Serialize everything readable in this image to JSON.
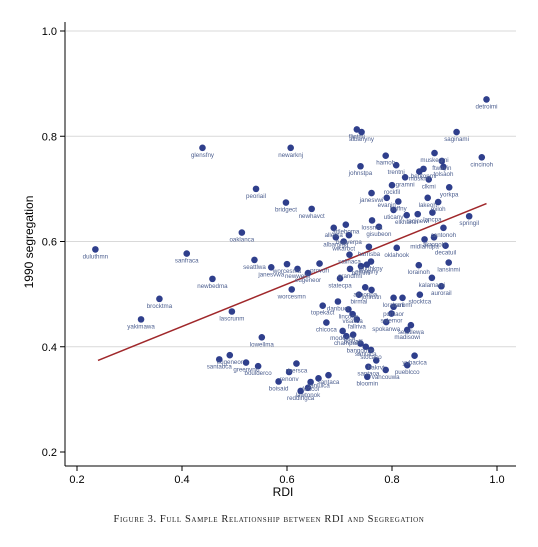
{
  "chart_data": {
    "type": "scatter",
    "xlabel": "RDI",
    "ylabel": "1990 segregation",
    "xlim": [
      0.2,
      1.0
    ],
    "ylim": [
      0.2,
      1.0
    ],
    "xticks": [
      "0.2",
      "0.4",
      "0.6",
      "0.8",
      "1.0"
    ],
    "yticks": [
      "0.2",
      "0.4",
      "0.6",
      "0.8",
      "1.0"
    ],
    "grid": "horizontal",
    "colors": {
      "point": "#2f3f8c",
      "fit_line": "#a0282b",
      "label": "#4d5f8f",
      "grid": "#d9d9d9"
    },
    "fit_line": {
      "x": [
        0.24,
        0.98
      ],
      "y": [
        0.374,
        0.672
      ]
    },
    "points": [
      {
        "x": 0.98,
        "y": 0.87,
        "label": "detroimi"
      },
      {
        "x": 0.923,
        "y": 0.808,
        "label": "saginami"
      },
      {
        "x": 0.971,
        "y": 0.76,
        "label": "cincinoh"
      },
      {
        "x": 0.881,
        "y": 0.768,
        "label": "muskegmi"
      },
      {
        "x": 0.898,
        "y": 0.742,
        "label": "tolsaoh"
      },
      {
        "x": 0.86,
        "y": 0.738,
        "label": "bentonmi"
      },
      {
        "x": 0.87,
        "y": 0.718,
        "label": "clkmi"
      },
      {
        "x": 0.852,
        "y": 0.733,
        "label": "muskmi"
      },
      {
        "x": 0.895,
        "y": 0.753,
        "label": "ftwayin"
      },
      {
        "x": 0.909,
        "y": 0.703,
        "label": "yorkpa"
      },
      {
        "x": 0.888,
        "y": 0.675,
        "label": "miloh"
      },
      {
        "x": 0.868,
        "y": 0.683,
        "label": "lakeoh"
      },
      {
        "x": 0.877,
        "y": 0.655,
        "label": "lancpa"
      },
      {
        "x": 0.947,
        "y": 0.648,
        "label": "springil"
      },
      {
        "x": 0.898,
        "y": 0.626,
        "label": "cantonoh"
      },
      {
        "x": 0.88,
        "y": 0.608,
        "label": "akronoh"
      },
      {
        "x": 0.902,
        "y": 0.592,
        "label": "decatuil"
      },
      {
        "x": 0.862,
        "y": 0.604,
        "label": "midlandpa"
      },
      {
        "x": 0.908,
        "y": 0.56,
        "label": "lansinmi"
      },
      {
        "x": 0.851,
        "y": 0.555,
        "label": "lorainoh"
      },
      {
        "x": 0.876,
        "y": 0.531,
        "label": "kalamami"
      },
      {
        "x": 0.894,
        "y": 0.515,
        "label": "aurorail"
      },
      {
        "x": 0.853,
        "y": 0.499,
        "label": "stocktca"
      },
      {
        "x": 0.82,
        "y": 0.493,
        "label": "harbmi"
      },
      {
        "x": 0.803,
        "y": 0.493,
        "label": "lorainmi"
      },
      {
        "x": 0.803,
        "y": 0.476,
        "label": "portlaor"
      },
      {
        "x": 0.799,
        "y": 0.463,
        "label": "salemor"
      },
      {
        "x": 0.789,
        "y": 0.447,
        "label": "spokanwa"
      },
      {
        "x": 0.836,
        "y": 0.441,
        "label": "seattlewa"
      },
      {
        "x": 0.829,
        "y": 0.432,
        "label": "madisowi"
      },
      {
        "x": 0.843,
        "y": 0.383,
        "label": "yubacica"
      },
      {
        "x": 0.829,
        "y": 0.365,
        "label": "pueblcco"
      },
      {
        "x": 0.77,
        "y": 0.374,
        "label": "bakrvt"
      },
      {
        "x": 0.755,
        "y": 0.362,
        "label": "santaoa"
      },
      {
        "x": 0.788,
        "y": 0.356,
        "label": "vancouwa"
      },
      {
        "x": 0.753,
        "y": 0.343,
        "label": "bloomin"
      },
      {
        "x": 0.733,
        "y": 0.813,
        "label": "flintmi"
      },
      {
        "x": 0.742,
        "y": 0.808,
        "label": "albanyny"
      },
      {
        "x": 0.74,
        "y": 0.743,
        "label": "johnstpa"
      },
      {
        "x": 0.788,
        "y": 0.763,
        "label": "hamoh"
      },
      {
        "x": 0.808,
        "y": 0.745,
        "label": "trentnj"
      },
      {
        "x": 0.825,
        "y": 0.722,
        "label": "gramni"
      },
      {
        "x": 0.8,
        "y": 0.707,
        "label": "rockfil"
      },
      {
        "x": 0.761,
        "y": 0.692,
        "label": "janesvwi"
      },
      {
        "x": 0.79,
        "y": 0.683,
        "label": "evanin"
      },
      {
        "x": 0.812,
        "y": 0.676,
        "label": "buffny"
      },
      {
        "x": 0.803,
        "y": 0.66,
        "label": "uticany"
      },
      {
        "x": 0.828,
        "y": 0.65,
        "label": "elkhartin"
      },
      {
        "x": 0.849,
        "y": 0.652,
        "label": "racinewi"
      },
      {
        "x": 0.762,
        "y": 0.64,
        "label": "lossnca"
      },
      {
        "x": 0.775,
        "y": 0.628,
        "label": "gisubeon"
      },
      {
        "x": 0.712,
        "y": 0.632,
        "label": "attleboma"
      },
      {
        "x": 0.689,
        "y": 0.626,
        "label": "allerca"
      },
      {
        "x": 0.718,
        "y": 0.612,
        "label": "beaverpa"
      },
      {
        "x": 0.693,
        "y": 0.608,
        "label": "albanyga"
      },
      {
        "x": 0.708,
        "y": 0.6,
        "label": "wikarbct"
      },
      {
        "x": 0.756,
        "y": 0.59,
        "label": "harrisba"
      },
      {
        "x": 0.809,
        "y": 0.588,
        "label": "oklahook"
      },
      {
        "x": 0.719,
        "y": 0.575,
        "label": "salinaca"
      },
      {
        "x": 0.76,
        "y": 0.562,
        "label": "bughkny"
      },
      {
        "x": 0.752,
        "y": 0.556,
        "label": "elmirany"
      },
      {
        "x": 0.72,
        "y": 0.548,
        "label": "grandfmi"
      },
      {
        "x": 0.741,
        "y": 0.553,
        "label": "bethmi"
      },
      {
        "x": 0.701,
        "y": 0.53,
        "label": "statecpa"
      },
      {
        "x": 0.749,
        "y": 0.513,
        "label": "altoonpa"
      },
      {
        "x": 0.761,
        "y": 0.508,
        "label": "johnstn"
      },
      {
        "x": 0.737,
        "y": 0.499,
        "label": "birmal"
      },
      {
        "x": 0.697,
        "y": 0.486,
        "label": "danbuct"
      },
      {
        "x": 0.668,
        "y": 0.478,
        "label": "topekact"
      },
      {
        "x": 0.717,
        "y": 0.471,
        "label": "lincone"
      },
      {
        "x": 0.725,
        "y": 0.462,
        "label": "visalica"
      },
      {
        "x": 0.733,
        "y": 0.452,
        "label": "fallriva"
      },
      {
        "x": 0.675,
        "y": 0.446,
        "label": "chicoca"
      },
      {
        "x": 0.706,
        "y": 0.43,
        "label": "modesca"
      },
      {
        "x": 0.713,
        "y": 0.42,
        "label": "champaii"
      },
      {
        "x": 0.726,
        "y": 0.423,
        "label": "bqivalil"
      },
      {
        "x": 0.74,
        "y": 0.406,
        "label": "bangorme"
      },
      {
        "x": 0.75,
        "y": 0.4,
        "label": "santaca"
      },
      {
        "x": 0.76,
        "y": 0.394,
        "label": "stocaco"
      },
      {
        "x": 0.439,
        "y": 0.778,
        "label": "glensfny"
      },
      {
        "x": 0.607,
        "y": 0.778,
        "label": "newarknj"
      },
      {
        "x": 0.541,
        "y": 0.7,
        "label": "peoriail"
      },
      {
        "x": 0.598,
        "y": 0.674,
        "label": "bridgect"
      },
      {
        "x": 0.647,
        "y": 0.662,
        "label": "newhavct"
      },
      {
        "x": 0.514,
        "y": 0.617,
        "label": "oaklanca"
      },
      {
        "x": 0.235,
        "y": 0.585,
        "label": "duluthmn"
      },
      {
        "x": 0.409,
        "y": 0.577,
        "label": "sanfraca"
      },
      {
        "x": 0.538,
        "y": 0.565,
        "label": "seattlwa"
      },
      {
        "x": 0.57,
        "y": 0.551,
        "label": "janesvwa"
      },
      {
        "x": 0.6,
        "y": 0.557,
        "label": "worcesma"
      },
      {
        "x": 0.62,
        "y": 0.548,
        "label": "newwells"
      },
      {
        "x": 0.64,
        "y": 0.54,
        "label": "eugeneor"
      },
      {
        "x": 0.662,
        "y": 0.558,
        "label": "provdri"
      },
      {
        "x": 0.458,
        "y": 0.529,
        "label": "newbedma"
      },
      {
        "x": 0.609,
        "y": 0.509,
        "label": "worcesmn"
      },
      {
        "x": 0.357,
        "y": 0.491,
        "label": "brocktma"
      },
      {
        "x": 0.322,
        "y": 0.452,
        "label": "yakimawa"
      },
      {
        "x": 0.495,
        "y": 0.467,
        "label": "lascrunm"
      },
      {
        "x": 0.552,
        "y": 0.418,
        "label": "lowellma"
      },
      {
        "x": 0.491,
        "y": 0.384,
        "label": "eugeneor"
      },
      {
        "x": 0.471,
        "y": 0.376,
        "label": "santabca"
      },
      {
        "x": 0.545,
        "y": 0.363,
        "label": "boulderco"
      },
      {
        "x": 0.522,
        "y": 0.37,
        "label": "greenvnc"
      },
      {
        "x": 0.618,
        "y": 0.368,
        "label": "riversca"
      },
      {
        "x": 0.604,
        "y": 0.352,
        "label": "renonv"
      },
      {
        "x": 0.584,
        "y": 0.334,
        "label": "boisaid"
      },
      {
        "x": 0.645,
        "y": 0.333,
        "label": "fortcol"
      },
      {
        "x": 0.66,
        "y": 0.34,
        "label": "sanluica"
      },
      {
        "x": 0.679,
        "y": 0.346,
        "label": "santaca"
      },
      {
        "x": 0.626,
        "y": 0.316,
        "label": "reddingca"
      },
      {
        "x": 0.64,
        "y": 0.322,
        "label": "lawtonok"
      }
    ]
  },
  "caption": "Figure 3. Full Sample Relationship between RDI and Segregation"
}
